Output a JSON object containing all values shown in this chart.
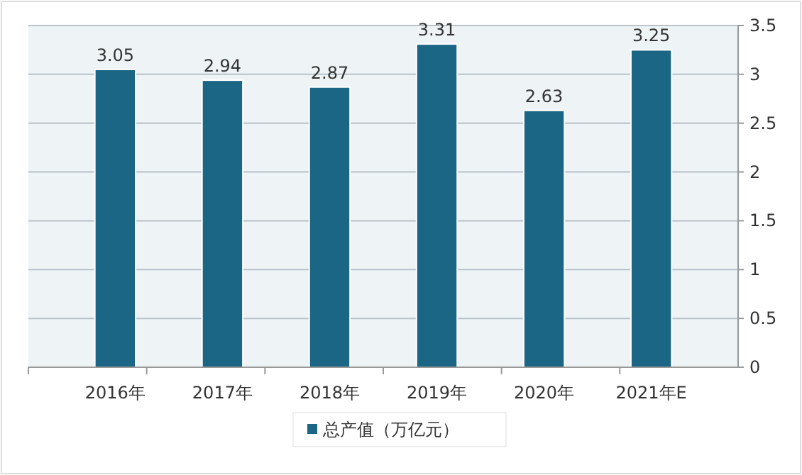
{
  "chart_data": {
    "type": "bar",
    "categories": [
      "2016年",
      "2017年",
      "2018年",
      "2019年",
      "2020年",
      "2021年E"
    ],
    "series": [
      {
        "name": "总产值（万亿元）",
        "color": "#1b6585",
        "values": [
          3.05,
          2.94,
          2.87,
          3.31,
          2.63,
          3.25
        ]
      }
    ],
    "ylim": [
      0,
      3.5
    ],
    "yticks": [
      0,
      0.5,
      1,
      1.5,
      2,
      2.5,
      3,
      3.5
    ],
    "grid": "y",
    "data_labels": true,
    "legend": "bottom"
  }
}
